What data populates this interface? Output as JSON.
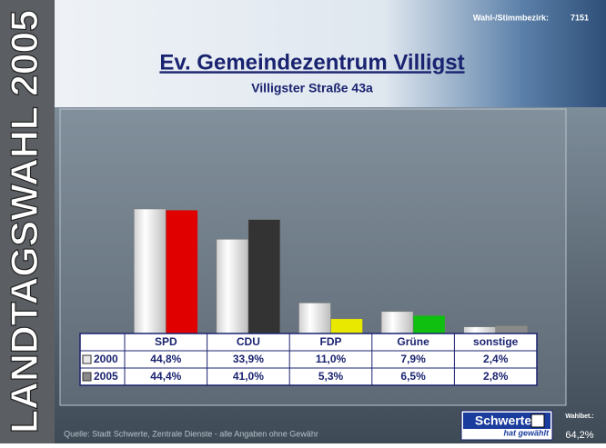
{
  "chart_data": {
    "type": "bar",
    "title": "Ev. Gemeindezentrum Villigst",
    "subtitle": "Villigster Straße 43a",
    "district_label": "Wahl-/Stimmbezirk:",
    "district": "7151",
    "side_title": "LANDTAGSWAHL 2005",
    "source": "Quelle: Stadt Schwerte, Zentrale Dienste - alle Angaben ohne Gewähr",
    "logo": "Schwerte",
    "logo_sub": "hat gewählt",
    "turnout_label": "Wahlbet.:",
    "turnout": "64,2%",
    "categories": [
      "SPD",
      "CDU",
      "FDP",
      "Grüne",
      "sonstige"
    ],
    "series": [
      {
        "name": "2000",
        "color": "#e8e8e8",
        "values": [
          44.8,
          33.9,
          11.0,
          7.9,
          2.4
        ],
        "value_labels": [
          "44,8%",
          "33,9%",
          "11,0%",
          "7,9%",
          "2,4%"
        ]
      },
      {
        "name": "2005",
        "color": "#8a8a8a",
        "colors": [
          "#e00000",
          "#333333",
          "#e8e800",
          "#10c010",
          "#8a8a8a"
        ],
        "values": [
          44.4,
          41.0,
          5.3,
          6.5,
          2.8
        ],
        "value_labels": [
          "44,4%",
          "41,0%",
          "5,3%",
          "6,5%",
          "2,8%"
        ]
      }
    ]
  }
}
